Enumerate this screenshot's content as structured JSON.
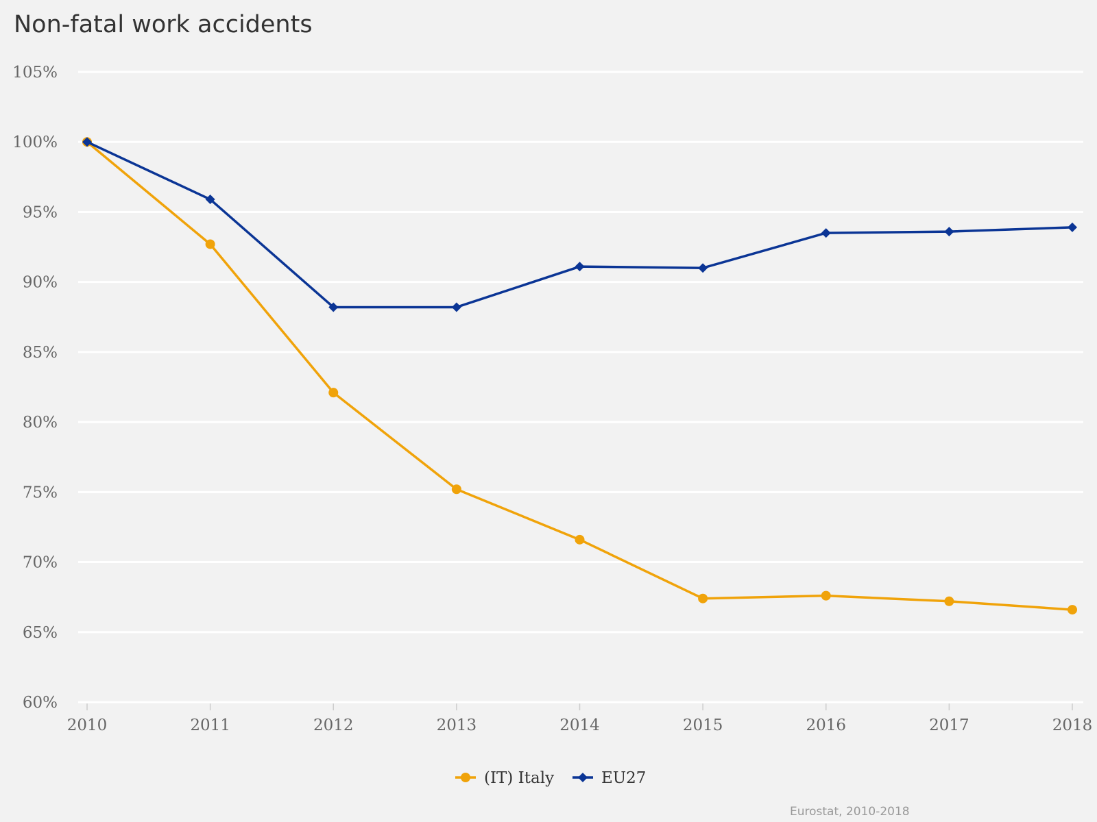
{
  "chart_data": {
    "type": "line",
    "title": "Non-fatal work accidents",
    "xlabel": "",
    "ylabel": "",
    "categories": [
      "2010",
      "2011",
      "2012",
      "2013",
      "2014",
      "2015",
      "2016",
      "2017",
      "2018"
    ],
    "y_ticks": [
      "60%",
      "65%",
      "70%",
      "75%",
      "80%",
      "85%",
      "90%",
      "95%",
      "100%",
      "105%"
    ],
    "y_tick_values": [
      60,
      65,
      70,
      75,
      80,
      85,
      90,
      95,
      100,
      105
    ],
    "ylim": [
      60,
      105
    ],
    "grid": true,
    "legend_position": "bottom-center",
    "series": [
      {
        "name": "(IT) Italy",
        "color": "#f0a30a",
        "marker": "circle",
        "values": [
          100.0,
          92.7,
          82.1,
          75.2,
          71.6,
          67.4,
          67.6,
          67.2,
          66.6
        ]
      },
      {
        "name": "EU27",
        "color": "#0b3595",
        "marker": "diamond",
        "values": [
          100.0,
          95.9,
          88.2,
          88.2,
          91.1,
          91.0,
          93.5,
          93.6,
          93.9
        ]
      }
    ],
    "source": "Eurostat, 2010-2018"
  }
}
